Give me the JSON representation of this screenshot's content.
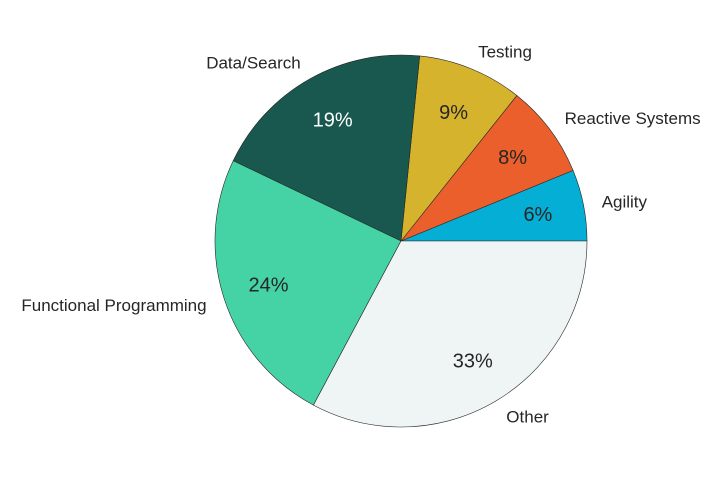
{
  "chart_data": {
    "type": "pie",
    "title": "",
    "start_angle_deg": 0,
    "direction": "counterclockwise",
    "categories": [
      "Agility",
      "Reactive Systems",
      "Testing",
      "Data/Search",
      "Functional Programming",
      "Other"
    ],
    "values": [
      6.2,
      8.1,
      9.1,
      19.5,
      24.3,
      32.8
    ],
    "labels_pct": [
      "6%",
      "8%",
      "9%",
      "19%",
      "24%",
      "33%"
    ],
    "colors": [
      "#04aed4",
      "#ea5f2b",
      "#d6b32d",
      "#19584e",
      "#45d3a5",
      "#eff5f5"
    ],
    "pct_text_colors": [
      "#262626",
      "#262626",
      "#262626",
      "#ffffff",
      "#262626",
      "#262626"
    ],
    "edge_color": "#262626",
    "legend": "none"
  }
}
